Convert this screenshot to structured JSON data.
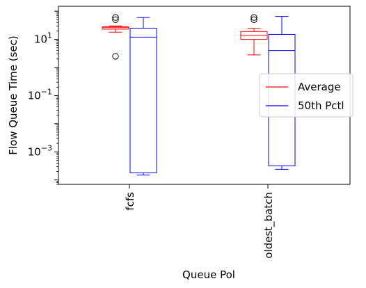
{
  "chart_data": {
    "type": "box",
    "xlabel": "Queue Pol",
    "ylabel": "Flow Queue Time (sec)",
    "yscale": "log",
    "ylim": [
      7e-05,
      150
    ],
    "categories": [
      "fcfs",
      "oldest_batch"
    ],
    "yticks": [
      {
        "value": 10,
        "base": "10",
        "exp": "1"
      },
      {
        "value": 0.1,
        "base": "10",
        "exp": "−1"
      },
      {
        "value": 0.001,
        "base": "10",
        "exp": "−3"
      }
    ],
    "legend": {
      "position": "center-right"
    },
    "series": [
      {
        "name": "Average",
        "color": "#ff0000",
        "boxes": [
          {
            "category": "fcfs",
            "whislo": 18,
            "q1": 23,
            "med": 26,
            "q3": 28,
            "whishi": 30,
            "fliers": [
              2.5,
              50,
              60
            ]
          },
          {
            "category": "oldest_batch",
            "whislo": 2.8,
            "q1": 10,
            "med": 14,
            "q3": 19,
            "whishi": 25,
            "fliers": [
              50,
              60
            ]
          }
        ]
      },
      {
        "name": "50th Pctl",
        "color": "#0000ff",
        "boxes": [
          {
            "category": "fcfs",
            "whislo": 0.00015,
            "q1": 0.00018,
            "med": 12,
            "q3": 25,
            "whishi": 60,
            "fliers": []
          },
          {
            "category": "oldest_batch",
            "whislo": 0.00024,
            "q1": 0.00032,
            "med": 4,
            "q3": 15,
            "whishi": 65,
            "fliers": []
          }
        ]
      }
    ]
  }
}
